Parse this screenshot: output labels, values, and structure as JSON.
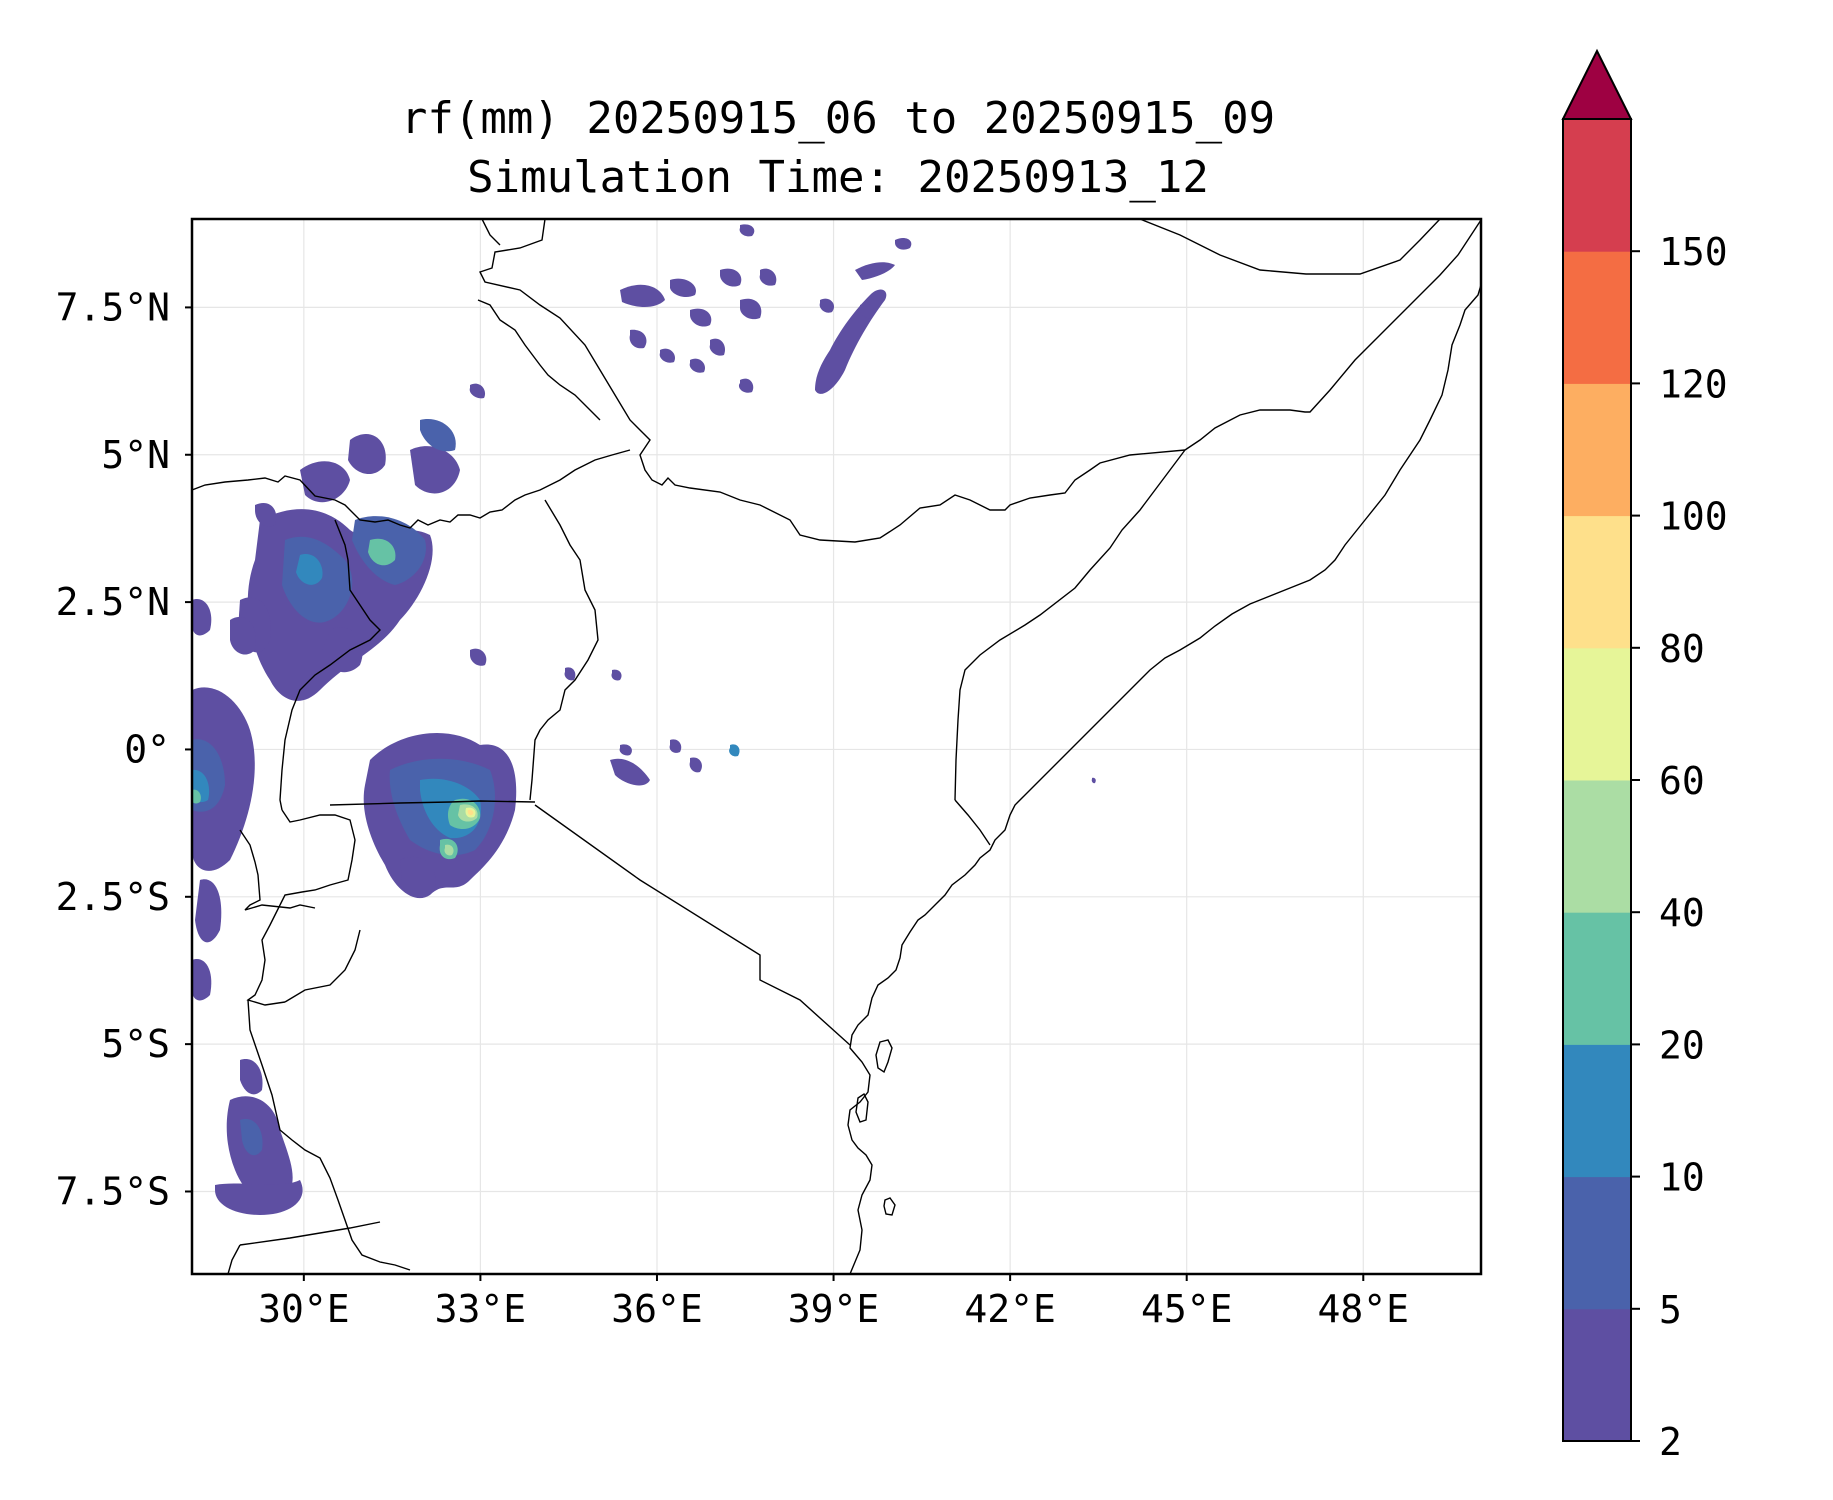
{
  "title": {
    "line1": "rf(mm) 20250915_06 to 20250915_09",
    "line2": "Simulation Time: 20250913_12"
  },
  "axes": {
    "x_ticks": [
      "30°E",
      "33°E",
      "36°E",
      "39°E",
      "42°E",
      "45°E",
      "48°E"
    ],
    "y_ticks": [
      "7.5°N",
      "5°N",
      "2.5°N",
      "0°",
      "2.5°S",
      "5°S",
      "7.5°S"
    ],
    "lon_range": [
      28.1,
      50.0
    ],
    "lat_range": [
      -8.9,
      9.0
    ],
    "grid": true
  },
  "colorbar": {
    "levels": [
      "2",
      "5",
      "10",
      "20",
      "40",
      "60",
      "80",
      "100",
      "120",
      "150"
    ],
    "colors": [
      "#5e4fa2",
      "#4a62ab",
      "#3288bd",
      "#66c2a5",
      "#abdda4",
      "#e6f598",
      "#fee08b",
      "#fdae61",
      "#f46d43",
      "#d53e4f"
    ],
    "extend_color": "#9e0142",
    "extend": "max"
  },
  "map": {
    "features": [
      "coastlines",
      "country-borders"
    ],
    "region": "East Africa"
  }
}
